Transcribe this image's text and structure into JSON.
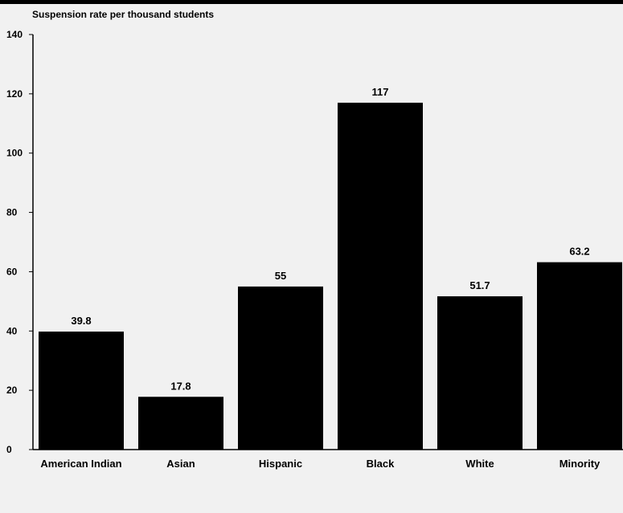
{
  "chart_data": {
    "type": "bar",
    "ylabel": "Suspension rate per thousand students",
    "xlabel": "",
    "title": "",
    "categories": [
      "American Indian",
      "Asian",
      "Hispanic",
      "Black",
      "White",
      "Minority"
    ],
    "values": [
      39.8,
      17.8,
      55,
      117,
      51.7,
      63.2
    ],
    "data_labels": [
      "39.8",
      "17.8",
      "55",
      "117",
      "51.7",
      "63.2"
    ],
    "ylim": [
      0,
      140
    ],
    "yticks": [
      0,
      20,
      40,
      60,
      80,
      100,
      120,
      140
    ],
    "grid": false,
    "legend": "none",
    "bar_color": "#000000"
  }
}
